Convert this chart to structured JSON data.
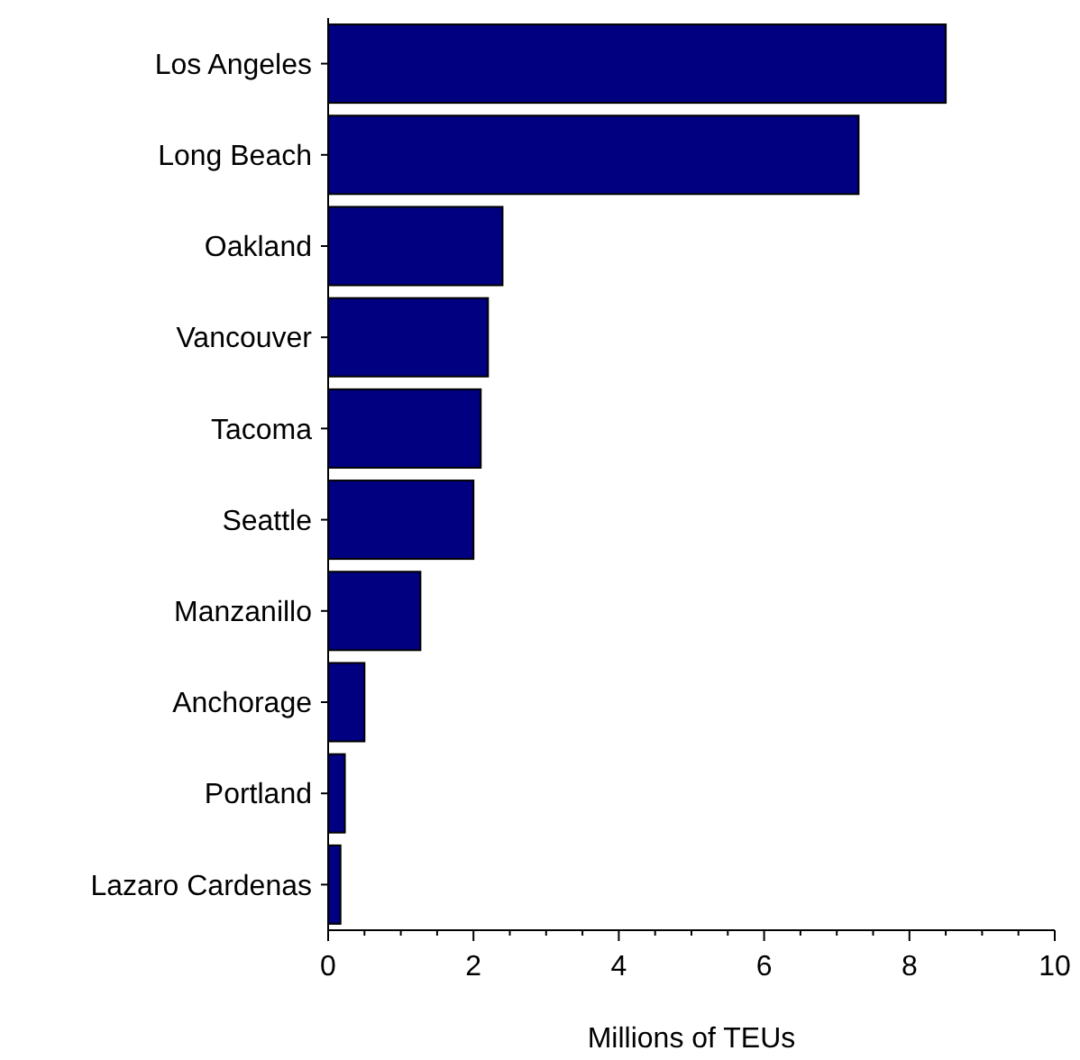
{
  "chart_data": {
    "type": "bar",
    "orientation": "horizontal",
    "xlabel": "Millions of TEUs",
    "categories": [
      "Los Angeles",
      "Long Beach",
      "Oakland",
      "Vancouver",
      "Tacoma",
      "Seattle",
      "Manzanillo",
      "Anchorage",
      "Portland",
      "Lazaro Cardenas"
    ],
    "values": [
      8.5,
      7.3,
      2.4,
      2.2,
      2.1,
      2.0,
      1.27,
      0.5,
      0.23,
      0.17
    ],
    "color": "#000080",
    "xlim": [
      0,
      10
    ],
    "xticks": [
      0,
      2,
      4,
      6,
      8,
      10
    ]
  }
}
